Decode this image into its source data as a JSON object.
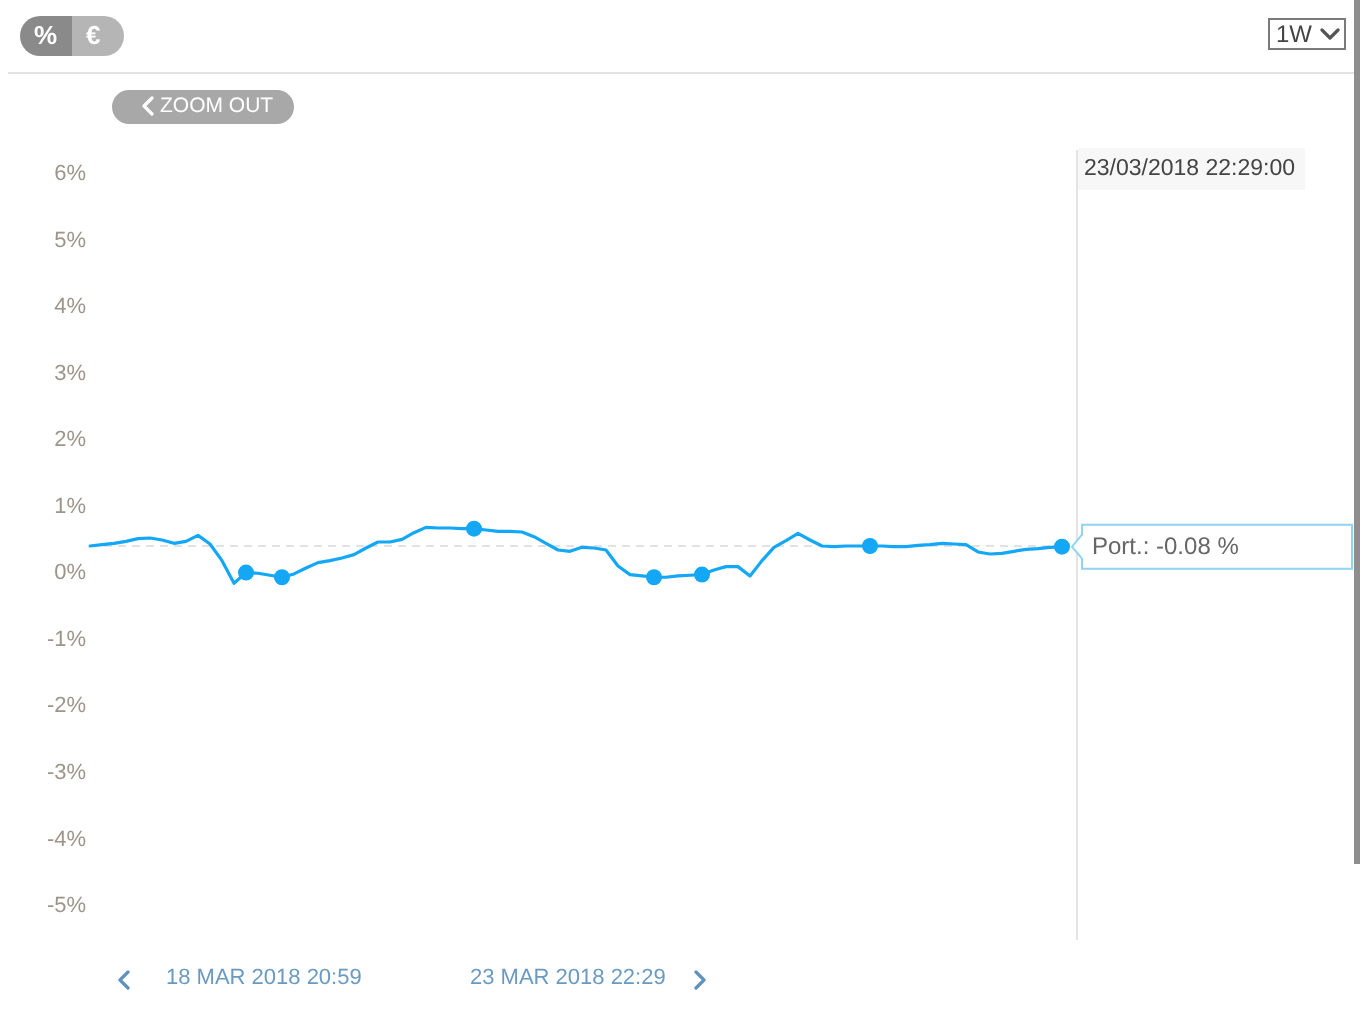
{
  "chart_data": {
    "type": "line",
    "categories": [
      null,
      null,
      null,
      null,
      null,
      null,
      null,
      null,
      null,
      null,
      null,
      null,
      null,
      null,
      null,
      null,
      null,
      null,
      null,
      null,
      null,
      null,
      null,
      null,
      null,
      null,
      null,
      null,
      null,
      null,
      null,
      null,
      null,
      null,
      null,
      null,
      null,
      null,
      null,
      null,
      null,
      null,
      null,
      null,
      null,
      null,
      null,
      null,
      null,
      null,
      null,
      null,
      null,
      null,
      null,
      null,
      null,
      null,
      null,
      null,
      null,
      null,
      null,
      null,
      null,
      null,
      null,
      null,
      null,
      null,
      null,
      null,
      null,
      null,
      null,
      null,
      null,
      null,
      null,
      null,
      null,
      null
    ],
    "series": [
      {
        "color": "#14a7f5",
        "values": [
          0.41,
          0.43,
          0.45,
          0.48,
          0.52,
          0.53,
          0.5,
          0.45,
          0.48,
          0.57,
          0.44,
          0.19,
          -0.15,
          0.01,
          0.0,
          -0.03,
          -0.06,
          -0.01,
          0.08,
          0.16,
          0.19,
          0.23,
          0.28,
          0.38,
          0.47,
          0.47,
          0.51,
          0.61,
          0.69,
          0.68,
          0.68,
          0.67,
          0.67,
          0.65,
          0.63,
          0.63,
          0.62,
          0.55,
          0.45,
          0.35,
          0.33,
          0.39,
          0.38,
          0.35,
          0.11,
          -0.02,
          -0.04,
          -0.06,
          -0.06,
          -0.04,
          -0.03,
          -0.02,
          0.05,
          0.1,
          0.1,
          -0.04,
          0.19,
          0.39,
          0.49,
          0.6,
          0.5,
          0.41,
          0.4,
          0.41,
          0.41,
          0.41,
          0.41,
          0.4,
          0.4,
          0.42,
          0.43,
          0.45,
          0.44,
          0.43,
          0.32,
          0.29,
          0.3,
          0.33,
          0.36,
          0.37,
          0.39,
          0.4
        ]
      },
      {
        "type": "scatter",
        "color": "#14a7f5",
        "marker": "circle",
        "values": [
          null,
          null,
          null,
          null,
          null,
          null,
          null,
          null,
          null,
          null,
          null,
          null,
          null,
          0.01,
          null,
          null,
          -0.06,
          null,
          null,
          null,
          null,
          null,
          null,
          null,
          null,
          null,
          null,
          null,
          null,
          null,
          null,
          null,
          0.67,
          null,
          null,
          null,
          null,
          null,
          null,
          null,
          null,
          null,
          null,
          null,
          null,
          null,
          null,
          -0.06,
          null,
          null,
          null,
          -0.02,
          null,
          null,
          null,
          null,
          null,
          null,
          null,
          null,
          null,
          null,
          null,
          null,
          null,
          0.41,
          null,
          null,
          null,
          null,
          null,
          null,
          null,
          null,
          null,
          null,
          null,
          null,
          null,
          null,
          null,
          0.4
        ]
      }
    ],
    "ylim": [
      -5,
      6
    ],
    "yticks": [
      {
        "value": 6,
        "label": "6%"
      },
      {
        "value": 5,
        "label": "5%"
      },
      {
        "value": 4,
        "label": "4%"
      },
      {
        "value": 3,
        "label": "3%"
      },
      {
        "value": 2,
        "label": "2%"
      },
      {
        "value": 1,
        "label": "1%"
      },
      {
        "value": 0,
        "label": "0%"
      },
      {
        "value": -1,
        "label": "-1%"
      },
      {
        "value": -2,
        "label": "-2%"
      },
      {
        "value": -3,
        "label": "-3%"
      },
      {
        "value": -4,
        "label": "-4%"
      },
      {
        "value": -5,
        "label": "-5%"
      }
    ],
    "tick_labels": "y",
    "ref_lines": [
      {
        "axis": "y",
        "value": 0.41,
        "color": "#e2e2e2",
        "line_style": "dashed"
      }
    ],
    "annotations": [
      "%",
      "€",
      "1W",
      "ZOOM OUT",
      "18 MAR 2018 20:59",
      "23 MAR 2018 22:29",
      "23/03/2018 22:29:00",
      "Port.: -0.08 %"
    ]
  }
}
